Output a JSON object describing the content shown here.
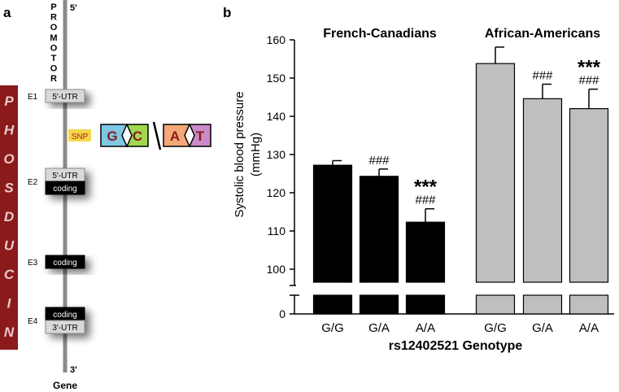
{
  "panel_a": {
    "label": "a",
    "promoter_letters": [
      "P",
      "R",
      "O",
      "M",
      "O",
      "T",
      "O",
      "R"
    ],
    "five_prime": "5'",
    "three_prime": "3'",
    "gene_label": "Gene",
    "side_letters": [
      "P",
      "H",
      "O",
      "S",
      "D",
      "U",
      "C",
      "I",
      "N"
    ],
    "exons": [
      {
        "name": "E1",
        "boxes": [
          {
            "text": "5'-UTR",
            "style": "light"
          }
        ]
      },
      {
        "name": "E2",
        "boxes": [
          {
            "text": "5'-UTR",
            "style": "light"
          },
          {
            "text": "coding",
            "style": "dark"
          }
        ]
      },
      {
        "name": "E3",
        "boxes": [
          {
            "text": "coding",
            "style": "dark"
          }
        ]
      },
      {
        "name": "E4",
        "boxes": [
          {
            "text": "coding",
            "style": "dark"
          },
          {
            "text": "3'-UTR",
            "style": "light"
          }
        ]
      }
    ],
    "snp": {
      "label": "SNP",
      "allele1": [
        "G",
        "C"
      ],
      "allele2": [
        "A",
        "T"
      ],
      "colors": {
        "G": "#7ec8e3",
        "C": "#9fd84f",
        "A": "#f2a877",
        "T": "#c98ac8",
        "snp_bg": "#f5d64a",
        "side_bar": "#8b1a1a"
      }
    }
  },
  "chart_data": {
    "type": "bar",
    "panel_label": "b",
    "ylabel": "Systolic blood pressure (mmHg)",
    "ylabel_lines": [
      "Systolic blood pressure",
      "(mmHg)"
    ],
    "xlabel": "rs12402521 Genotype",
    "ylim": [
      100,
      160
    ],
    "yticks": [
      "100",
      "110",
      "120",
      "130",
      "140",
      "150",
      "160"
    ],
    "axis_break_tick": "0",
    "groups": [
      {
        "name": "French-Canadians",
        "color": "#000000",
        "categories": [
          "G/G",
          "G/A",
          "A/A"
        ],
        "values": [
          127.2,
          124.3,
          112.3
        ],
        "errors": [
          1.2,
          1.9,
          3.5
        ],
        "hash_marks": [
          "",
          "###",
          "###"
        ],
        "stars": [
          "",
          "",
          "***"
        ]
      },
      {
        "name": "African-Americans",
        "color": "#bfbfbf",
        "categories": [
          "G/G",
          "G/A",
          "A/A"
        ],
        "values": [
          153.8,
          144.6,
          142.0
        ],
        "errors": [
          4.3,
          3.8,
          5.1
        ],
        "hash_marks": [
          "",
          "###",
          "###"
        ],
        "stars": [
          "",
          "",
          "***"
        ]
      }
    ]
  }
}
